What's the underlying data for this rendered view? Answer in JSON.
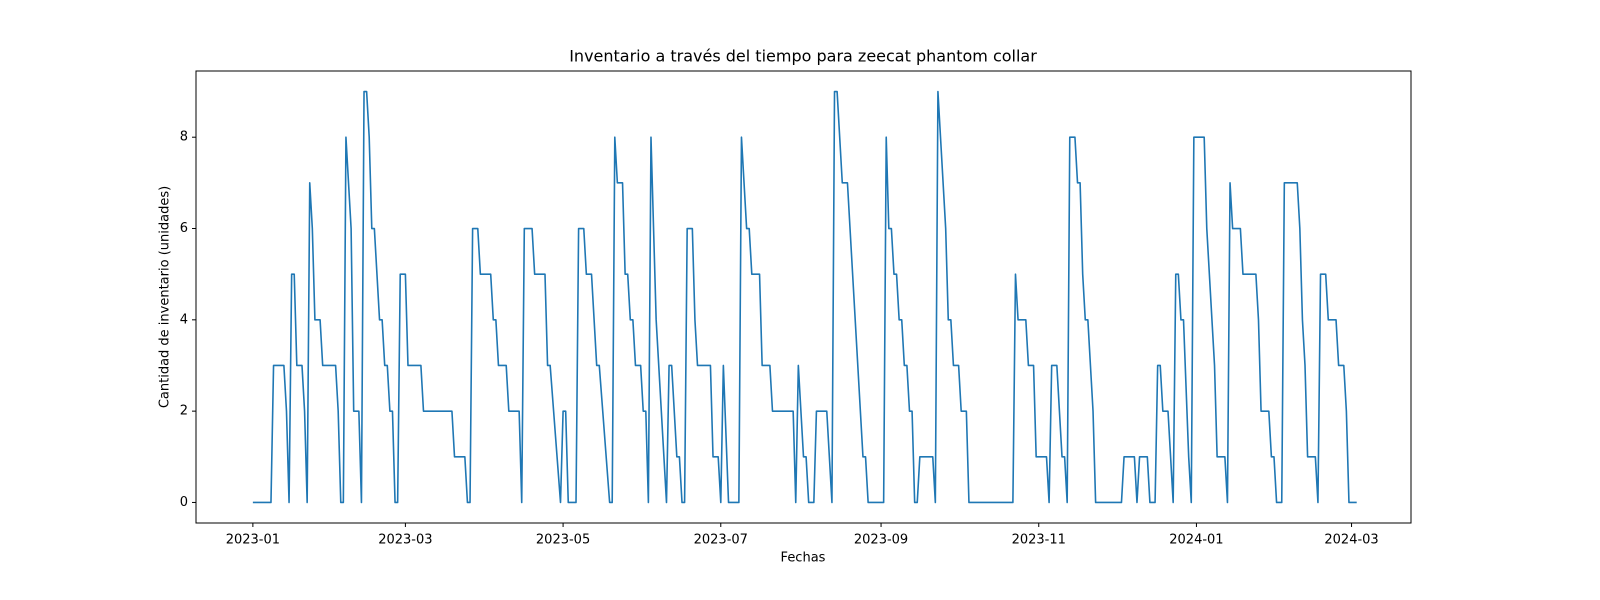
{
  "chart_data": {
    "type": "line",
    "title": "Inventario a través del tiempo para zeecat phantom collar",
    "xlabel": "Fechas",
    "ylabel": "Cantidad de inventario (unidades)",
    "series": [
      {
        "name": "Inventario",
        "color": "#1f77b4",
        "x": [
          "2023-01-01",
          "2023-01-08",
          "2023-01-09",
          "2023-01-13",
          "2023-01-14",
          "2023-01-15",
          "2023-01-16",
          "2023-01-17",
          "2023-01-18",
          "2023-01-20",
          "2023-01-21",
          "2023-01-22",
          "2023-01-23",
          "2023-01-24",
          "2023-01-25",
          "2023-01-27",
          "2023-01-28",
          "2023-02-02",
          "2023-02-03",
          "2023-02-04",
          "2023-02-05",
          "2023-02-06",
          "2023-02-08",
          "2023-02-09",
          "2023-02-11",
          "2023-02-12",
          "2023-02-13",
          "2023-02-14",
          "2023-02-15",
          "2023-02-16",
          "2023-02-17",
          "2023-02-19",
          "2023-02-20",
          "2023-02-21",
          "2023-02-22",
          "2023-02-23",
          "2023-02-24",
          "2023-02-25",
          "2023-02-26",
          "2023-02-27",
          "2023-03-01",
          "2023-03-02",
          "2023-03-07",
          "2023-03-08",
          "2023-03-19",
          "2023-03-20",
          "2023-03-24",
          "2023-03-25",
          "2023-03-26",
          "2023-03-27",
          "2023-03-29",
          "2023-03-30",
          "2023-04-03",
          "2023-04-04",
          "2023-04-05",
          "2023-04-06",
          "2023-04-09",
          "2023-04-10",
          "2023-04-14",
          "2023-04-15",
          "2023-04-16",
          "2023-04-19",
          "2023-04-20",
          "2023-04-24",
          "2023-04-25",
          "2023-04-26",
          "2023-04-30",
          "2023-05-01",
          "2023-05-02",
          "2023-05-03",
          "2023-05-06",
          "2023-05-07",
          "2023-05-09",
          "2023-05-10",
          "2023-05-12",
          "2023-05-14",
          "2023-05-15",
          "2023-05-19",
          "2023-05-20",
          "2023-05-21",
          "2023-05-22",
          "2023-05-24",
          "2023-05-25",
          "2023-05-26",
          "2023-05-27",
          "2023-05-28",
          "2023-05-29",
          "2023-05-31",
          "2023-06-01",
          "2023-06-02",
          "2023-06-03",
          "2023-06-04",
          "2023-06-06",
          "2023-06-10",
          "2023-06-11",
          "2023-06-12",
          "2023-06-14",
          "2023-06-15",
          "2023-06-16",
          "2023-06-17",
          "2023-06-18",
          "2023-06-20",
          "2023-06-21",
          "2023-06-22",
          "2023-06-27",
          "2023-06-28",
          "2023-06-30",
          "2023-07-01",
          "2023-07-02",
          "2023-07-04",
          "2023-07-08",
          "2023-07-09",
          "2023-07-11",
          "2023-07-12",
          "2023-07-13",
          "2023-07-16",
          "2023-07-17",
          "2023-07-20",
          "2023-07-21",
          "2023-07-29",
          "2023-07-30",
          "2023-07-31",
          "2023-08-02",
          "2023-08-03",
          "2023-08-04",
          "2023-08-06",
          "2023-08-07",
          "2023-08-11",
          "2023-08-13",
          "2023-08-14",
          "2023-08-15",
          "2023-08-17",
          "2023-08-19",
          "2023-08-20",
          "2023-08-25",
          "2023-08-26",
          "2023-08-27",
          "2023-09-02",
          "2023-09-03",
          "2023-09-04",
          "2023-09-05",
          "2023-09-06",
          "2023-09-07",
          "2023-09-08",
          "2023-09-09",
          "2023-09-10",
          "2023-09-11",
          "2023-09-12",
          "2023-09-13",
          "2023-09-14",
          "2023-09-15",
          "2023-09-16",
          "2023-09-21",
          "2023-09-22",
          "2023-09-23",
          "2023-09-26",
          "2023-09-27",
          "2023-09-28",
          "2023-09-29",
          "2023-10-01",
          "2023-10-02",
          "2023-10-04",
          "2023-10-05",
          "2023-10-22",
          "2023-10-23",
          "2023-10-24",
          "2023-10-27",
          "2023-10-28",
          "2023-10-30",
          "2023-10-31",
          "2023-11-04",
          "2023-11-05",
          "2023-11-06",
          "2023-11-08",
          "2023-11-10",
          "2023-11-11",
          "2023-11-12",
          "2023-11-13",
          "2023-11-15",
          "2023-11-16",
          "2023-11-17",
          "2023-11-18",
          "2023-11-19",
          "2023-11-20",
          "2023-11-22",
          "2023-11-23",
          "2023-12-03",
          "2023-12-04",
          "2023-12-08",
          "2023-12-09",
          "2023-12-10",
          "2023-12-13",
          "2023-12-14",
          "2023-12-16",
          "2023-12-17",
          "2023-12-18",
          "2023-12-19",
          "2023-12-21",
          "2023-12-23",
          "2023-12-24",
          "2023-12-25",
          "2023-12-26",
          "2023-12-27",
          "2023-12-29",
          "2023-12-30",
          "2023-12-31",
          "2024-01-04",
          "2024-01-05",
          "2024-01-08",
          "2024-01-09",
          "2024-01-12",
          "2024-01-13",
          "2024-01-14",
          "2024-01-15",
          "2024-01-18",
          "2024-01-19",
          "2024-01-24",
          "2024-01-25",
          "2024-01-26",
          "2024-01-29",
          "2024-01-30",
          "2024-01-31",
          "2024-02-01",
          "2024-02-03",
          "2024-02-04",
          "2024-02-09",
          "2024-02-10",
          "2024-02-11",
          "2024-02-12",
          "2024-02-13",
          "2024-02-16",
          "2024-02-17",
          "2024-02-18",
          "2024-02-20",
          "2024-02-21",
          "2024-02-24",
          "2024-02-25",
          "2024-02-27",
          "2024-02-28",
          "2024-02-29",
          "2024-03-03"
        ],
        "values": [
          0,
          0,
          3,
          3,
          2,
          0,
          5,
          5,
          3,
          3,
          2,
          0,
          7,
          6,
          4,
          4,
          3,
          3,
          2,
          0,
          0,
          8,
          6,
          2,
          2,
          0,
          9,
          9,
          8,
          6,
          6,
          4,
          4,
          3,
          3,
          2,
          2,
          0,
          0,
          5,
          5,
          3,
          3,
          2,
          2,
          1,
          1,
          0,
          0,
          6,
          6,
          5,
          5,
          4,
          4,
          3,
          3,
          2,
          2,
          0,
          6,
          6,
          5,
          5,
          3,
          3,
          0,
          2,
          2,
          0,
          0,
          6,
          6,
          5,
          5,
          3,
          3,
          0,
          0,
          8,
          7,
          7,
          5,
          5,
          4,
          4,
          3,
          3,
          2,
          2,
          0,
          8,
          4,
          0,
          3,
          3,
          1,
          1,
          0,
          0,
          6,
          6,
          4,
          3,
          3,
          1,
          1,
          0,
          3,
          0,
          0,
          8,
          6,
          6,
          5,
          5,
          3,
          3,
          2,
          2,
          0,
          3,
          1,
          1,
          0,
          0,
          2,
          2,
          0,
          9,
          9,
          7,
          7,
          6,
          1,
          1,
          0,
          0,
          8,
          6,
          6,
          5,
          5,
          4,
          4,
          3,
          3,
          2,
          2,
          0,
          0,
          1,
          1,
          0,
          9,
          6,
          4,
          4,
          3,
          3,
          2,
          2,
          0,
          0,
          5,
          4,
          4,
          3,
          3,
          1,
          1,
          0,
          3,
          3,
          1,
          1,
          0,
          8,
          8,
          7,
          7,
          5,
          4,
          4,
          2,
          0,
          0,
          1,
          1,
          0,
          1,
          1,
          0,
          0,
          3,
          3,
          2,
          2,
          0,
          5,
          5,
          4,
          4,
          1,
          0,
          8,
          8,
          6,
          3,
          1,
          1,
          0,
          7,
          6,
          6,
          5,
          5,
          4,
          2,
          2,
          1,
          1,
          0,
          0,
          7,
          7,
          6,
          4,
          3,
          1,
          1,
          0,
          5,
          5,
          4,
          4,
          3,
          3,
          2,
          0,
          0
        ]
      }
    ],
    "xlim": [
      "2022-12-10",
      "2024-03-24"
    ],
    "xticks": [
      {
        "value": "2023-01-01",
        "label": "2023-01"
      },
      {
        "value": "2023-03-01",
        "label": "2023-03"
      },
      {
        "value": "2023-05-01",
        "label": "2023-05"
      },
      {
        "value": "2023-07-01",
        "label": "2023-07"
      },
      {
        "value": "2023-09-01",
        "label": "2023-09"
      },
      {
        "value": "2023-11-01",
        "label": "2023-11"
      },
      {
        "value": "2024-01-01",
        "label": "2024-01"
      },
      {
        "value": "2024-03-01",
        "label": "2024-03"
      }
    ],
    "ylim": [
      -0.45,
      9.45
    ],
    "yticks": [
      0,
      2,
      4,
      6,
      8
    ],
    "grid": false
  }
}
